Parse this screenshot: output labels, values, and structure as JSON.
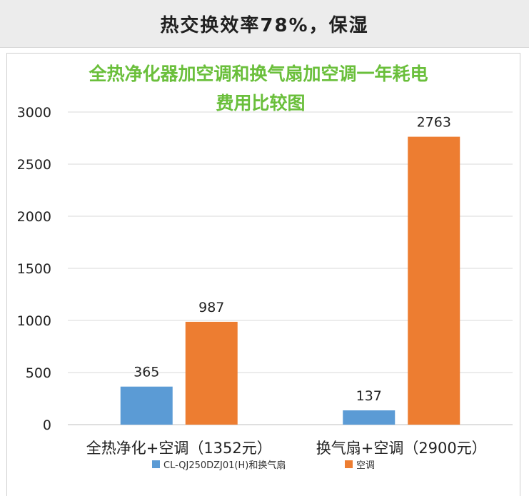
{
  "header": {
    "title": "热交换效率78%，保湿"
  },
  "chart_data": {
    "type": "bar",
    "title_lines": [
      "全热净化器加空调和换气扇加空调一年耗电",
      "费用比较图"
    ],
    "categories": [
      "全热净化+空调（1352元）",
      "换气扇+空调（2900元）"
    ],
    "series": [
      {
        "name": "CL-QJ250DZJ01(H)和换气扇",
        "values": [
          365,
          137
        ],
        "color": "#5b9bd5"
      },
      {
        "name": "空调",
        "values": [
          987,
          2763
        ],
        "color": "#ed7d31"
      }
    ],
    "ylim": [
      0,
      3000
    ],
    "yticks": [
      0,
      500,
      1000,
      1500,
      2000,
      2500,
      3000
    ],
    "grid": true,
    "legend_position": "bottom"
  }
}
